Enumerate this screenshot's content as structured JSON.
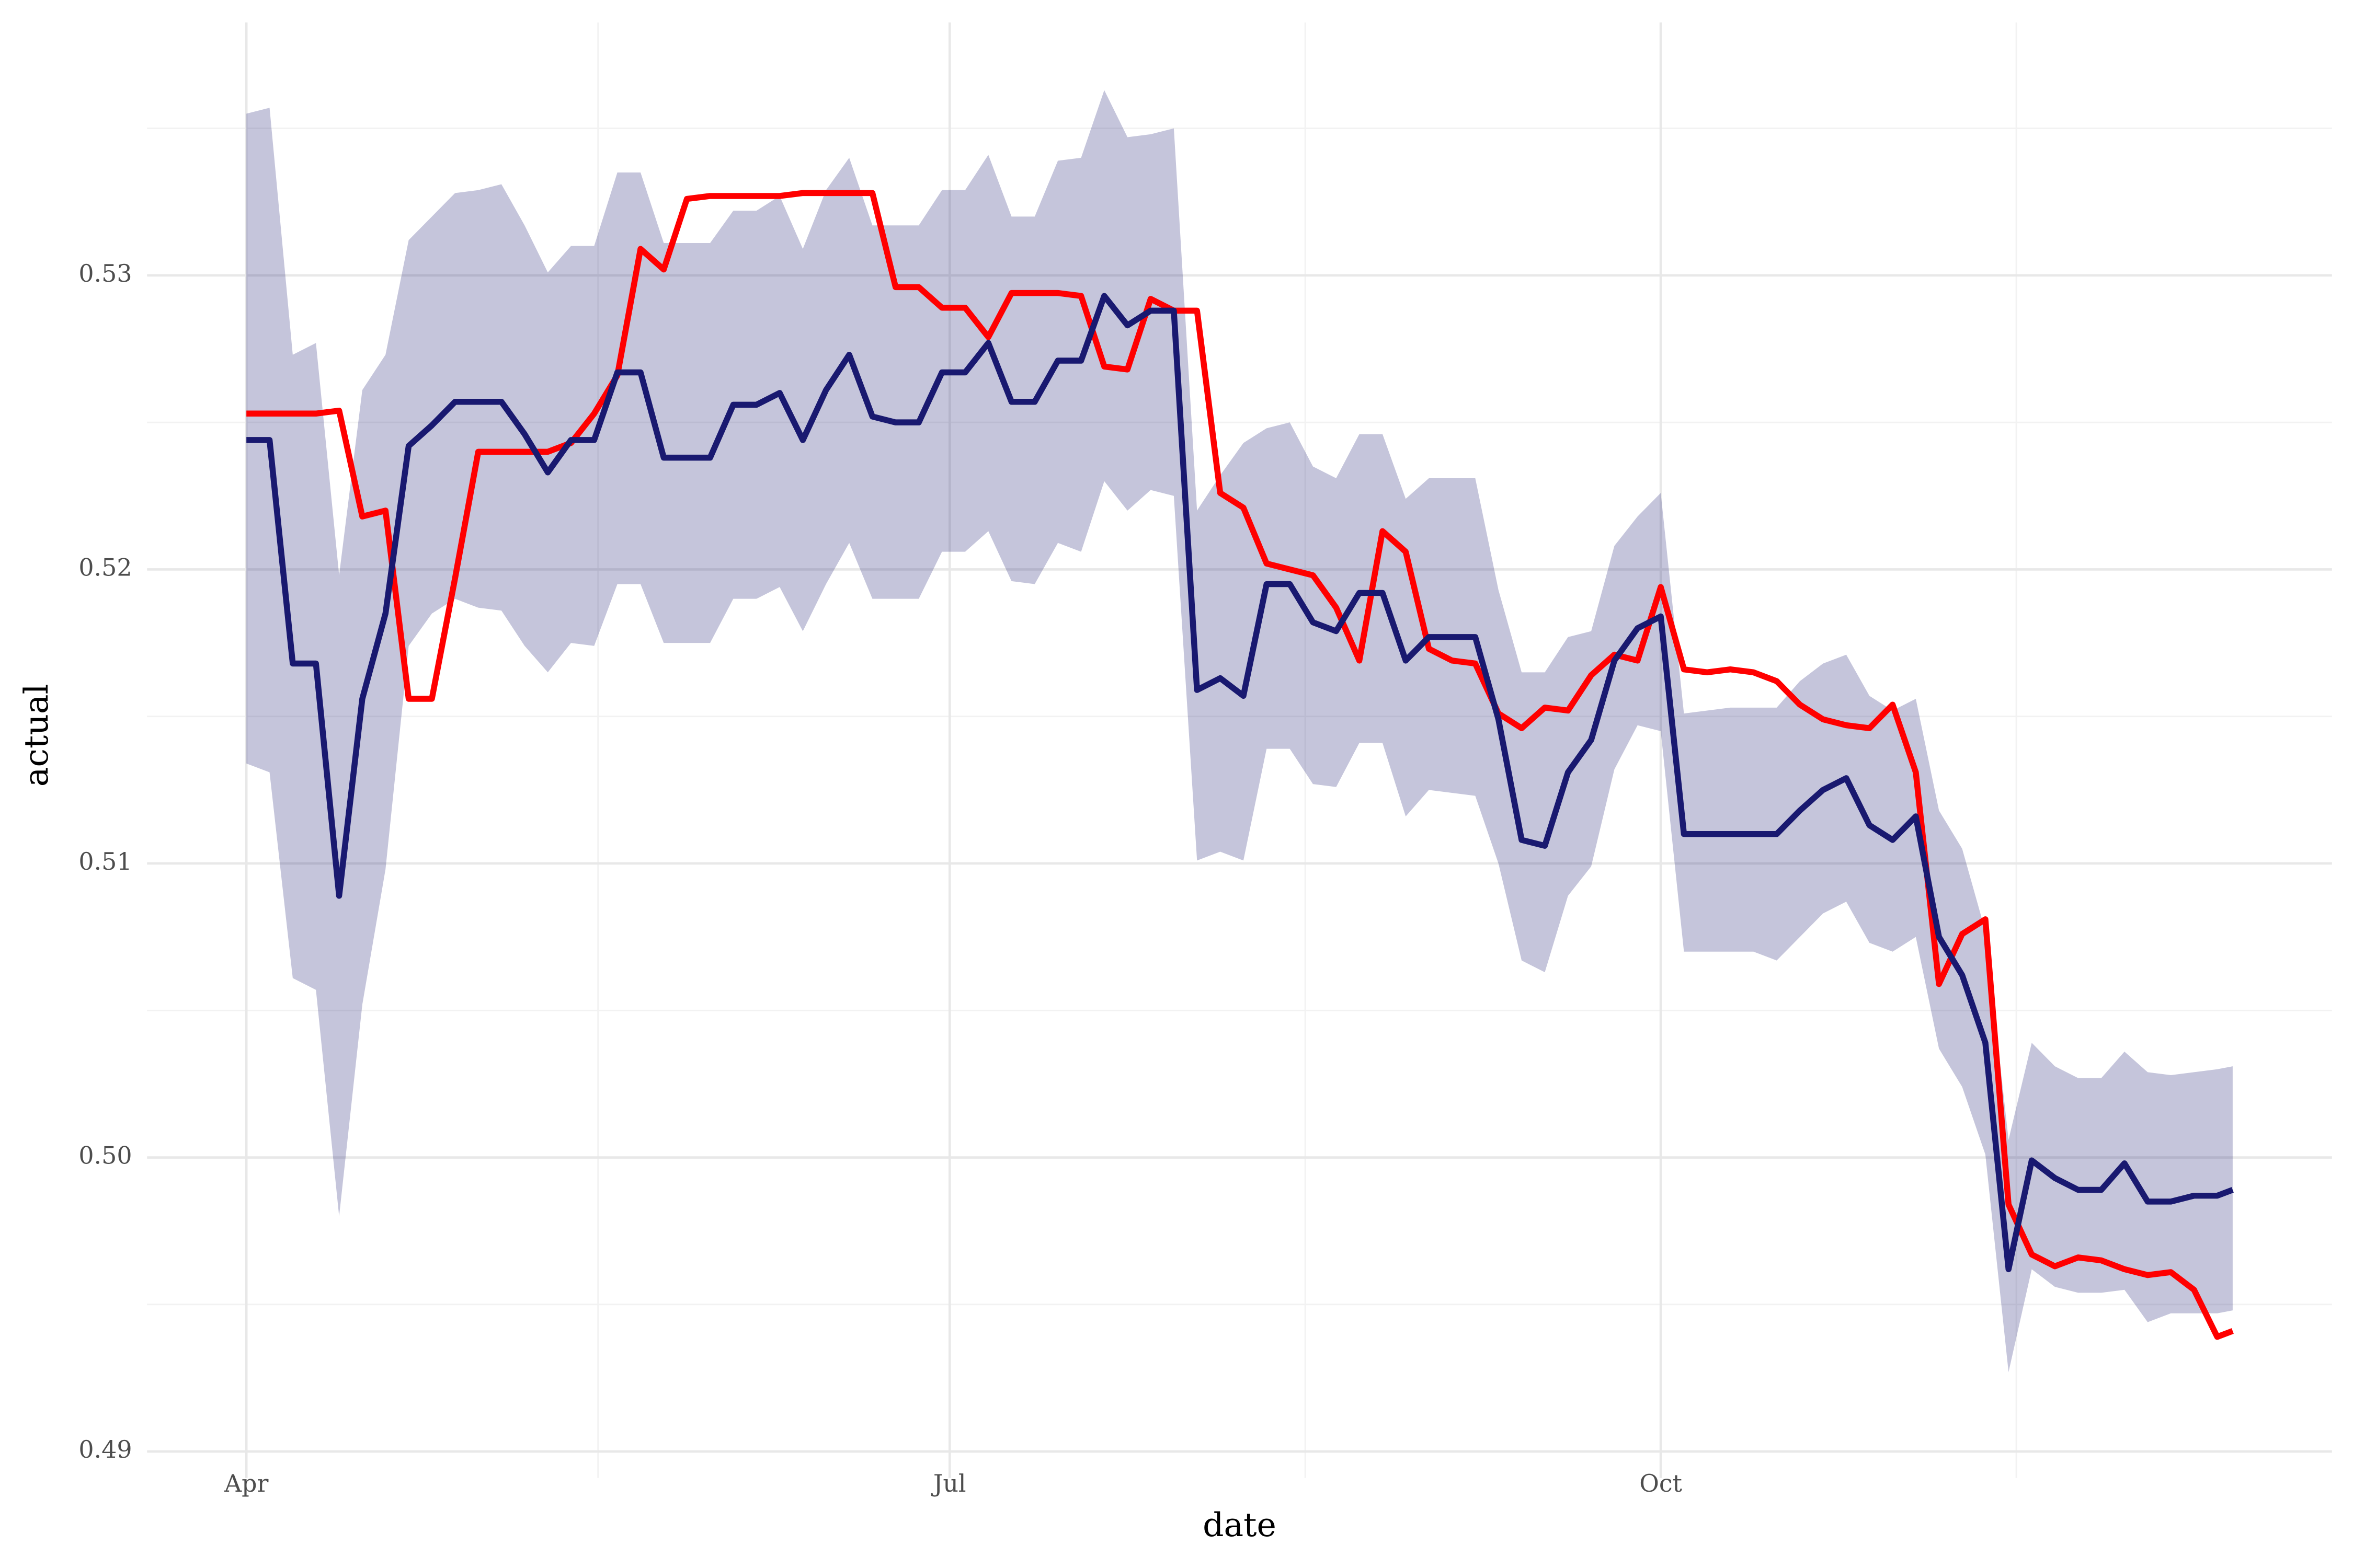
{
  "chart_data": {
    "type": "line",
    "x_label": "date",
    "y_label": "actual",
    "x": [
      0,
      3,
      6,
      9,
      12,
      15,
      18,
      21,
      24,
      27,
      30,
      33,
      36,
      39,
      42,
      45,
      48,
      51,
      54,
      57,
      60,
      63,
      66,
      69,
      72,
      75,
      78,
      81,
      84,
      87,
      90,
      93,
      96,
      99,
      102,
      105,
      108,
      111,
      114,
      117,
      120,
      123,
      126,
      129,
      132,
      135,
      138,
      141,
      144,
      147,
      150,
      153,
      156,
      159,
      162,
      165,
      168,
      171,
      174,
      177,
      180,
      183,
      186,
      189,
      192,
      195,
      198,
      201,
      204,
      207,
      210,
      213,
      216,
      219,
      222,
      225,
      228,
      231,
      234,
      237,
      240,
      243,
      246,
      249,
      252,
      255,
      257
    ],
    "xlim": [
      -12.85,
      269.85
    ],
    "xticks": [
      {
        "value": 0,
        "label": "Apr"
      },
      {
        "value": 91,
        "label": "Jul"
      },
      {
        "value": 183,
        "label": "Oct"
      }
    ],
    "ylim": [
      0.4891,
      0.5386
    ],
    "yticks": [
      0.49,
      {
        "value": 0.5,
        "label": "0.50"
      },
      0.51,
      0.52,
      0.53
    ],
    "grid": true,
    "band": {
      "color": "#191970",
      "opacity": 0.25,
      "lower": [
        0.5134,
        0.5131,
        0.5061,
        0.5057,
        0.498,
        0.5052,
        0.5098,
        0.5174,
        0.5185,
        0.519,
        0.5187,
        0.5186,
        0.5174,
        0.5165,
        0.5175,
        0.5174,
        0.5195,
        0.5195,
        0.5175,
        0.5175,
        0.5175,
        0.519,
        0.519,
        0.5194,
        0.5179,
        0.5195,
        0.5209,
        0.519,
        0.519,
        0.519,
        0.5206,
        0.5206,
        0.5213,
        0.5196,
        0.5195,
        0.5209,
        0.5206,
        0.523,
        0.522,
        0.5227,
        0.5225,
        0.5101,
        0.5104,
        0.5101,
        0.5139,
        0.5139,
        0.5127,
        0.5126,
        0.5141,
        0.5141,
        0.5116,
        0.5125,
        0.5124,
        0.5123,
        0.51,
        0.5067,
        0.5063,
        0.5089,
        0.5099,
        0.5132,
        0.5147,
        0.5145,
        0.507,
        0.507,
        0.507,
        0.507,
        0.5067,
        0.5075,
        0.5083,
        0.5087,
        0.5073,
        0.507,
        0.5075,
        0.5037,
        0.5024,
        0.5001,
        0.4927,
        0.4962,
        0.4956,
        0.4954,
        0.4954,
        0.4955,
        0.4944,
        0.4947,
        0.4947,
        0.4947,
        0.4948
      ],
      "upper": [
        0.5355,
        0.5357,
        0.5273,
        0.5277,
        0.5198,
        0.5261,
        0.5273,
        0.5312,
        0.532,
        0.5328,
        0.5329,
        0.5331,
        0.5317,
        0.5301,
        0.531,
        0.531,
        0.5335,
        0.5335,
        0.5311,
        0.5311,
        0.5311,
        0.5322,
        0.5322,
        0.5327,
        0.5309,
        0.5329,
        0.534,
        0.5317,
        0.5317,
        0.5317,
        0.5329,
        0.5329,
        0.5341,
        0.532,
        0.532,
        0.5339,
        0.534,
        0.5363,
        0.5347,
        0.5348,
        0.535,
        0.522,
        0.5232,
        0.5243,
        0.5248,
        0.525,
        0.5235,
        0.5231,
        0.5246,
        0.5246,
        0.5224,
        0.5231,
        0.5231,
        0.5231,
        0.5193,
        0.5165,
        0.5165,
        0.5177,
        0.5179,
        0.5208,
        0.5218,
        0.5226,
        0.5151,
        0.5152,
        0.5153,
        0.5153,
        0.5153,
        0.5162,
        0.5168,
        0.5171,
        0.5157,
        0.5152,
        0.5156,
        0.5118,
        0.5105,
        0.5077,
        0.5006,
        0.5039,
        0.5031,
        0.5027,
        0.5027,
        0.5036,
        0.5029,
        0.5028,
        0.5029,
        0.503,
        0.5031
      ]
    },
    "series": [
      {
        "color": "#ff0000",
        "values": [
          0.5253,
          0.5253,
          0.5253,
          0.5253,
          0.5254,
          0.5218,
          0.522,
          0.5156,
          0.5156,
          0.5197,
          0.524,
          0.524,
          0.524,
          0.524,
          0.5243,
          0.5253,
          0.5266,
          0.5309,
          0.5302,
          0.5326,
          0.5327,
          0.5327,
          0.5327,
          0.5327,
          0.5328,
          0.5328,
          0.5328,
          0.5328,
          0.5296,
          0.5296,
          0.5289,
          0.5289,
          0.5279,
          0.5294,
          0.5294,
          0.5294,
          0.5293,
          0.5269,
          0.5268,
          0.5292,
          0.5288,
          0.5288,
          0.5226,
          0.5221,
          0.5202,
          0.52,
          0.5198,
          0.5187,
          0.5169,
          0.5213,
          0.5206,
          0.5173,
          0.5169,
          0.5168,
          0.5151,
          0.5146,
          0.5153,
          0.5152,
          0.5164,
          0.5171,
          0.5169,
          0.5194,
          0.5166,
          0.5165,
          0.5166,
          0.5165,
          0.5162,
          0.5154,
          0.5149,
          0.5147,
          0.5146,
          0.5154,
          0.5131,
          0.5059,
          0.5076,
          0.5081,
          0.4984,
          0.4967,
          0.4963,
          0.4966,
          0.4965,
          0.4962,
          0.496,
          0.4961,
          0.4955,
          0.4939,
          0.4941
        ]
      },
      {
        "color": "#191970",
        "values": [
          0.5244,
          0.5244,
          0.5168,
          0.5168,
          0.5089,
          0.5156,
          0.5185,
          0.5242,
          0.5249,
          0.5257,
          0.5257,
          0.5257,
          0.5246,
          0.5233,
          0.5244,
          0.5244,
          0.5267,
          0.5267,
          0.5238,
          0.5238,
          0.5238,
          0.5256,
          0.5256,
          0.526,
          0.5244,
          0.5261,
          0.5273,
          0.5252,
          0.525,
          0.525,
          0.5267,
          0.5267,
          0.5277,
          0.5257,
          0.5257,
          0.5271,
          0.5271,
          0.5293,
          0.5283,
          0.5288,
          0.5288,
          0.5159,
          0.5163,
          0.5157,
          0.5195,
          0.5195,
          0.5182,
          0.5179,
          0.5192,
          0.5192,
          0.5169,
          0.5177,
          0.5177,
          0.5177,
          0.5149,
          0.5108,
          0.5106,
          0.5131,
          0.5142,
          0.5169,
          0.518,
          0.5184,
          0.511,
          0.511,
          0.511,
          0.511,
          0.511,
          0.5118,
          0.5125,
          0.5129,
          0.5113,
          0.5108,
          0.5116,
          0.5075,
          0.5062,
          0.5039,
          0.4962,
          0.4999,
          0.4993,
          0.4989,
          0.4989,
          0.4998,
          0.4985,
          0.4985,
          0.4987,
          0.4987,
          0.4989
        ]
      }
    ]
  }
}
